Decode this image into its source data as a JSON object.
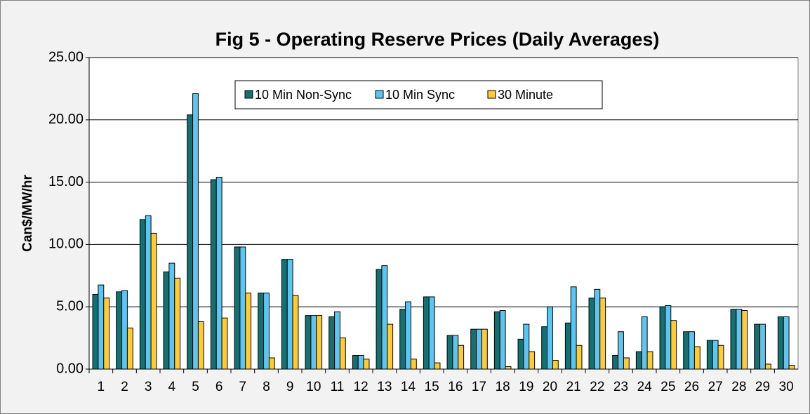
{
  "chart_data": {
    "type": "bar",
    "title": "Fig 5 - Operating Reserve Prices (Daily Averages)",
    "y_label": "Can$/MW/hr",
    "categories": [
      "1",
      "2",
      "3",
      "4",
      "5",
      "6",
      "7",
      "8",
      "9",
      "10",
      "11",
      "12",
      "13",
      "14",
      "15",
      "16",
      "17",
      "18",
      "19",
      "20",
      "21",
      "22",
      "23",
      "24",
      "25",
      "26",
      "27",
      "28",
      "29",
      "30"
    ],
    "series": [
      {
        "name": "10 Min Non-Sync",
        "color": "#16706f",
        "values": [
          6.0,
          6.2,
          12.0,
          7.8,
          20.4,
          15.2,
          9.8,
          6.1,
          8.8,
          4.3,
          4.2,
          1.1,
          8.0,
          4.8,
          5.8,
          2.7,
          3.2,
          4.6,
          2.4,
          3.4,
          3.7,
          5.7,
          1.1,
          1.4,
          5.0,
          3.0,
          2.3,
          4.8,
          3.6,
          4.2
        ]
      },
      {
        "name": "10 Min Sync",
        "color": "#5cc6f2",
        "values": [
          6.75,
          6.3,
          12.3,
          8.5,
          22.1,
          15.4,
          9.8,
          6.1,
          8.8,
          4.3,
          4.6,
          1.1,
          8.3,
          5.4,
          5.8,
          2.7,
          3.2,
          4.7,
          3.6,
          5.0,
          6.6,
          6.4,
          3.0,
          4.2,
          5.1,
          3.0,
          2.3,
          4.8,
          3.6,
          4.2
        ]
      },
      {
        "name": "30 Minute",
        "color": "#ffcc33",
        "values": [
          5.7,
          3.3,
          10.9,
          7.3,
          3.8,
          4.1,
          6.1,
          0.9,
          5.9,
          4.3,
          2.5,
          0.8,
          3.6,
          0.8,
          0.5,
          1.9,
          3.2,
          0.2,
          1.4,
          0.7,
          1.9,
          5.7,
          0.9,
          1.4,
          3.9,
          1.8,
          1.9,
          4.7,
          0.4,
          0.3
        ]
      }
    ],
    "ylim": [
      0,
      25
    ],
    "yticks": [
      {
        "value": 0,
        "label": "0.00"
      },
      {
        "value": 5,
        "label": "5.00"
      },
      {
        "value": 10,
        "label": "10.00"
      },
      {
        "value": 15,
        "label": "15.00"
      },
      {
        "value": 20,
        "label": "20.00"
      },
      {
        "value": 25,
        "label": "25.00"
      }
    ],
    "grid": true,
    "legend_position": "top"
  }
}
